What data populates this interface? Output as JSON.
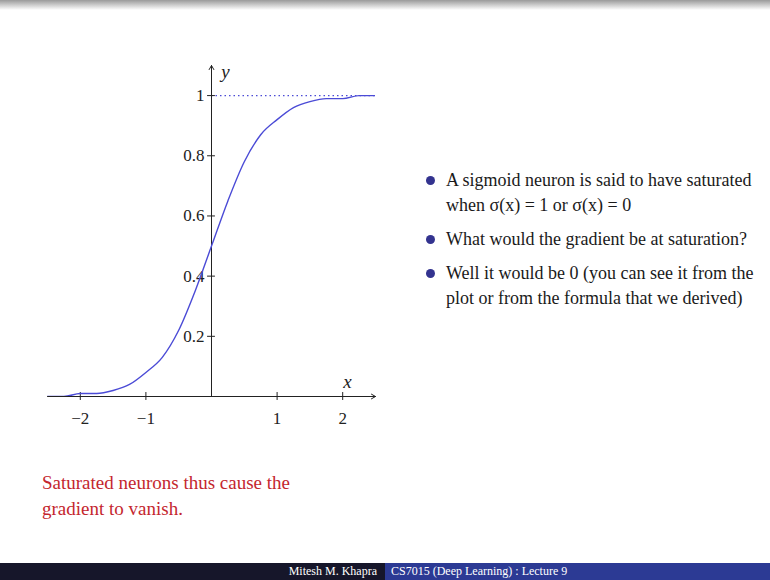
{
  "chart_data": {
    "type": "line",
    "x_label": "x",
    "y_label": "y",
    "x": [
      -2.5,
      -2.25,
      -2,
      -1.75,
      -1.5,
      -1.25,
      -1,
      -0.75,
      -0.5,
      -0.25,
      0,
      0.25,
      0.5,
      0.75,
      1,
      1.25,
      1.5,
      1.75,
      2,
      2.25,
      2.5
    ],
    "values": [
      0,
      0,
      0.01,
      0.01,
      0.02,
      0.04,
      0.08,
      0.13,
      0.22,
      0.35,
      0.5,
      0.65,
      0.78,
      0.87,
      0.92,
      0.96,
      0.98,
      0.99,
      0.99,
      1,
      1
    ],
    "color": "#4b4bd6",
    "xlim": [
      -2.5,
      2.5
    ],
    "ylim": [
      0,
      1.1
    ],
    "xticks": [
      -2,
      -1,
      1,
      2
    ],
    "yticks": [
      0.2,
      0.4,
      0.6,
      0.8,
      1
    ],
    "reference_lines": [
      {
        "y": 1,
        "line_style": "dotted",
        "color": "#4b4bd6"
      }
    ]
  },
  "bullets": [
    "A sigmoid neuron is said to have saturated when σ(x) = 1 or σ(x) = 0",
    "What would the gradient be at saturation?",
    "Well it would be 0 (you can see it from the plot or from the formula that we derived)"
  ],
  "caption": "Saturated neurons thus cause the gradient to vanish.",
  "footer": {
    "author": "Mitesh M. Khapra",
    "course": "CS7015 (Deep Learning) : Lecture 9"
  }
}
